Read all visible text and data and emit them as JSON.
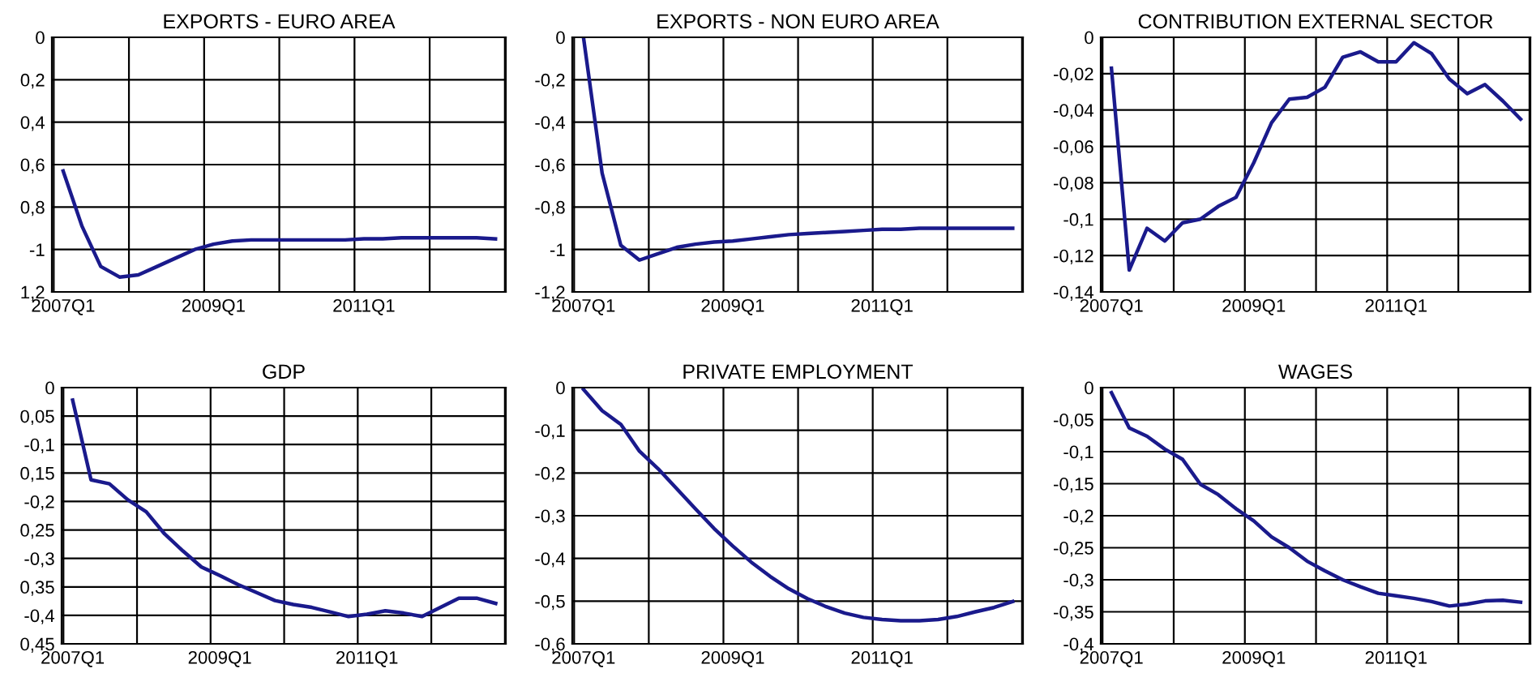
{
  "chart_data": [
    {
      "type": "line",
      "title": "EXPORTS - EURO AREA",
      "categories": [
        "2007Q1",
        null,
        null,
        null,
        null,
        null,
        null,
        null,
        "2009Q1",
        null,
        null,
        null,
        null,
        null,
        null,
        null,
        "2011Q1",
        null,
        null,
        null,
        null,
        null,
        null,
        null
      ],
      "color": "#1a1a8c",
      "grid": true,
      "ylim": [
        -1.2,
        0
      ],
      "yticks": [
        0,
        {
          "value": -0.2,
          "label": "0,2"
        },
        {
          "value": -0.4,
          "label": "0,4"
        },
        {
          "value": -0.6,
          "label": "0,6"
        },
        {
          "value": -0.8,
          "label": "0,8"
        },
        {
          "value": -1,
          "label": "-1"
        },
        {
          "value": -1.2,
          "label": "1,2"
        }
      ],
      "values": [
        -0.63,
        -0.89,
        -1.08,
        -1.13,
        -1.12,
        -1.08,
        -1.04,
        -1.0,
        -0.975,
        -0.96,
        -0.955,
        -0.955,
        -0.955,
        -0.955,
        -0.955,
        -0.955,
        -0.95,
        -0.95,
        -0.945,
        -0.945,
        -0.945,
        -0.945,
        -0.945,
        -0.95
      ]
    },
    {
      "type": "line",
      "title": "EXPORTS - NON EURO AREA",
      "categories": [
        "2007Q1",
        null,
        null,
        null,
        null,
        null,
        null,
        null,
        "2009Q1",
        null,
        null,
        null,
        null,
        null,
        null,
        null,
        "2011Q1",
        null,
        null,
        null,
        null,
        null,
        null,
        null
      ],
      "color": "#1a1a8c",
      "grid": true,
      "ylim": [
        -1.2,
        0
      ],
      "yticks": [
        0,
        {
          "value": -0.2,
          "label": "-0,2"
        },
        {
          "value": -0.4,
          "label": "-0,4"
        },
        {
          "value": -0.6,
          "label": "-0,6"
        },
        {
          "value": -0.8,
          "label": "-0,8"
        },
        {
          "value": -1,
          "label": "-1"
        },
        {
          "value": -1.2,
          "label": "-1,2"
        }
      ],
      "values": [
        0,
        -0.64,
        -0.98,
        -1.05,
        -1.02,
        -0.99,
        -0.975,
        -0.965,
        -0.96,
        -0.95,
        -0.94,
        -0.93,
        -0.925,
        -0.92,
        -0.915,
        -0.91,
        -0.905,
        -0.905,
        -0.9,
        -0.9,
        -0.9,
        -0.9,
        -0.9,
        -0.9
      ]
    },
    {
      "type": "line",
      "title": "CONTRIBUTION EXTERNAL SECTOR",
      "categories": [
        "2007Q1",
        null,
        null,
        null,
        null,
        null,
        null,
        null,
        "2009Q1",
        null,
        null,
        null,
        null,
        null,
        null,
        null,
        "2011Q1",
        null,
        null,
        null,
        null,
        null,
        null,
        null
      ],
      "color": "#1a1a8c",
      "grid": true,
      "ylim": [
        -0.14,
        0
      ],
      "yticks": [
        0,
        {
          "value": -0.02,
          "label": "-0,02"
        },
        {
          "value": -0.04,
          "label": "-0,04"
        },
        {
          "value": -0.06,
          "label": "-0,06"
        },
        {
          "value": -0.08,
          "label": "-0,08"
        },
        {
          "value": -0.1,
          "label": "-0,1"
        },
        {
          "value": -0.12,
          "label": "-0,12"
        },
        {
          "value": -0.14,
          "label": "-0,14"
        }
      ],
      "values": [
        -0.017,
        -0.128,
        -0.105,
        -0.112,
        -0.102,
        -0.1,
        -0.093,
        -0.088,
        -0.069,
        -0.047,
        -0.034,
        -0.033,
        -0.0275,
        -0.011,
        -0.008,
        -0.0135,
        -0.0135,
        -0.003,
        -0.009,
        -0.023,
        -0.031,
        -0.026,
        -0.035,
        -0.045
      ]
    },
    {
      "type": "line",
      "title": "GDP",
      "categories": [
        "2007Q1",
        null,
        null,
        null,
        null,
        null,
        null,
        null,
        "2009Q1",
        null,
        null,
        null,
        null,
        null,
        null,
        null,
        "2011Q1",
        null,
        null,
        null,
        null,
        null,
        null,
        null
      ],
      "color": "#1a1a8c",
      "grid": true,
      "ylim": [
        -0.45,
        0
      ],
      "yticks": [
        0,
        {
          "value": -0.05,
          "label": "0,05"
        },
        {
          "value": -0.1,
          "label": "-0,1"
        },
        {
          "value": -0.15,
          "label": "0,15"
        },
        {
          "value": -0.2,
          "label": "-0,2"
        },
        {
          "value": -0.25,
          "label": "0,25"
        },
        {
          "value": -0.3,
          "label": "-0,3"
        },
        {
          "value": -0.35,
          "label": "0,35"
        },
        {
          "value": -0.4,
          "label": "-0,4"
        },
        {
          "value": -0.45,
          "label": "0,45"
        }
      ],
      "values": [
        -0.022,
        -0.162,
        -0.169,
        -0.197,
        -0.218,
        -0.257,
        -0.287,
        -0.315,
        -0.33,
        -0.346,
        -0.36,
        -0.374,
        -0.381,
        -0.386,
        -0.394,
        -0.402,
        -0.398,
        -0.392,
        -0.396,
        -0.402,
        -0.386,
        -0.37,
        -0.37,
        -0.379
      ]
    },
    {
      "type": "line",
      "title": "PRIVATE EMPLOYMENT",
      "categories": [
        "2007Q1",
        null,
        null,
        null,
        null,
        null,
        null,
        null,
        "2009Q1",
        null,
        null,
        null,
        null,
        null,
        null,
        null,
        "2011Q1",
        null,
        null,
        null,
        null,
        null,
        null,
        null
      ],
      "color": "#1a1a8c",
      "grid": true,
      "ylim": [
        -0.6,
        0
      ],
      "yticks": [
        0,
        {
          "value": -0.1,
          "label": "-0,1"
        },
        {
          "value": -0.2,
          "label": "-0,2"
        },
        {
          "value": -0.3,
          "label": "-0,3"
        },
        {
          "value": -0.4,
          "label": "-0,4"
        },
        {
          "value": -0.5,
          "label": "-0,5"
        },
        {
          "value": -0.6,
          "label": "-0,6"
        }
      ],
      "values": [
        -0.004,
        -0.054,
        -0.086,
        -0.149,
        -0.19,
        -0.237,
        -0.284,
        -0.33,
        -0.371,
        -0.409,
        -0.442,
        -0.471,
        -0.494,
        -0.513,
        -0.528,
        -0.538,
        -0.543,
        -0.546,
        -0.546,
        -0.543,
        -0.536,
        -0.525,
        -0.515,
        -0.501
      ]
    },
    {
      "type": "line",
      "title": "WAGES",
      "categories": [
        "2007Q1",
        null,
        null,
        null,
        null,
        null,
        null,
        null,
        "2009Q1",
        null,
        null,
        null,
        null,
        null,
        null,
        null,
        "2011Q1",
        null,
        null,
        null,
        null,
        null,
        null,
        null
      ],
      "color": "#1a1a8c",
      "grid": true,
      "ylim": [
        -0.4,
        0
      ],
      "yticks": [
        0,
        {
          "value": -0.05,
          "label": "-0,05"
        },
        {
          "value": -0.1,
          "label": "-0,1"
        },
        {
          "value": -0.15,
          "label": "-0,15"
        },
        {
          "value": -0.2,
          "label": "-0,2"
        },
        {
          "value": -0.25,
          "label": "-0,25"
        },
        {
          "value": -0.3,
          "label": "-0,3"
        },
        {
          "value": -0.35,
          "label": "-0,35"
        },
        {
          "value": -0.4,
          "label": "-0,4"
        }
      ],
      "values": [
        -0.008,
        -0.063,
        -0.076,
        -0.096,
        -0.112,
        -0.151,
        -0.167,
        -0.189,
        -0.208,
        -0.233,
        -0.25,
        -0.271,
        -0.286,
        -0.3,
        -0.311,
        -0.321,
        -0.325,
        -0.329,
        -0.334,
        -0.341,
        -0.338,
        -0.333,
        -0.332,
        -0.335
      ]
    }
  ]
}
